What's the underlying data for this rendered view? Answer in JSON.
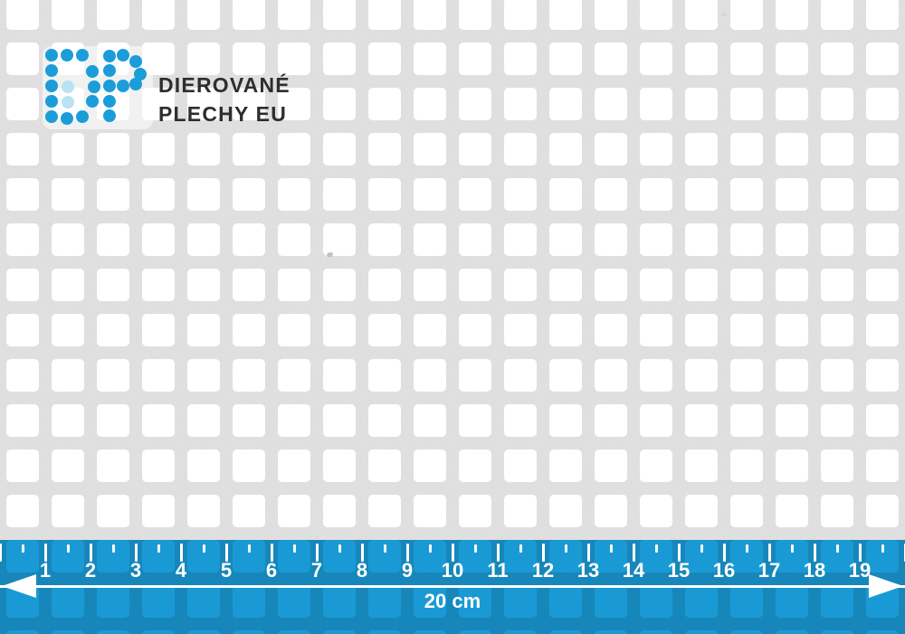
{
  "logo": {
    "mark": "DP",
    "line1": "DIEROVANÉ",
    "line2": "PLECHY EU"
  },
  "ruler": {
    "unit_labels": [
      "1",
      "2",
      "3",
      "4",
      "5",
      "6",
      "7",
      "8",
      "9",
      "10",
      "11",
      "12",
      "13",
      "14",
      "15",
      "16",
      "17",
      "18",
      "19"
    ],
    "length_label": "20 cm",
    "cm_count": 20
  },
  "colors": {
    "brand_blue": "#1b9dd9",
    "brand_blue_light": "#b9e2f5",
    "text_dark": "#2e2e2e",
    "ruler_blue": "#1a9ad5",
    "tick_white": "#ffffff",
    "metal_gray": "#e2e2e2",
    "hole_white": "#ffffff"
  }
}
